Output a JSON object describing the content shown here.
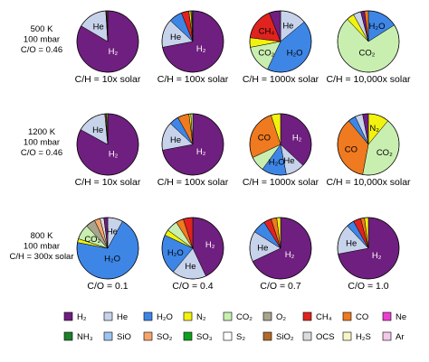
{
  "chart_data": {
    "type": "pie",
    "species": {
      "H2": {
        "label": "H₂",
        "color": "#6f1f7f"
      },
      "He": {
        "label": "He",
        "color": "#c7d3ea"
      },
      "H2O": {
        "label": "H₂O",
        "color": "#3e86e6"
      },
      "N2": {
        "label": "N₂",
        "color": "#f2f20f"
      },
      "CO2": {
        "label": "CO₂",
        "color": "#c9efb0"
      },
      "O2": {
        "label": "O₂",
        "color": "#a9a48d"
      },
      "CH4": {
        "label": "CH₄",
        "color": "#e0231f"
      },
      "CO": {
        "label": "CO",
        "color": "#ef7a1f"
      },
      "Ne": {
        "label": "Ne",
        "color": "#ec3fd2"
      },
      "NH3": {
        "label": "NH₃",
        "color": "#1f7f2a"
      },
      "SiO": {
        "label": "SiO",
        "color": "#9ec4f0"
      },
      "SO2": {
        "label": "SO₂",
        "color": "#f5a56b"
      },
      "SO3": {
        "label": "SO₃",
        "color": "#10a020"
      },
      "S2": {
        "label": "S₂",
        "color": "#ffffff"
      },
      "SiO2": {
        "label": "SiO₂",
        "color": "#b06a2a"
      },
      "OCS": {
        "label": "OCS",
        "color": "#dcdcdc"
      },
      "H2S": {
        "label": "H₂S",
        "color": "#f7f5c6"
      },
      "Ar": {
        "label": "Ar",
        "color": "#f3c8ec"
      }
    },
    "legend": [
      "H2",
      "He",
      "H2O",
      "N2",
      "CO2",
      "O2",
      "CH4",
      "CO",
      "Ne",
      "NH3",
      "SiO",
      "SO2",
      "SO3",
      "S2",
      "SiO2",
      "OCS",
      "H2S",
      "Ar"
    ],
    "rows": [
      {
        "label": [
          "500 K",
          "100 mbar",
          "C/O = 0.46"
        ],
        "pies": [
          {
            "caption": "C/H = 10x solar",
            "slices": [
              {
                "s": "H2",
                "v": 83.5,
                "label": true
              },
              {
                "s": "He",
                "v": 15.5,
                "label": true
              },
              {
                "s": "H2O",
                "v": 0.3
              },
              {
                "s": "CH4",
                "v": 0.4
              },
              {
                "s": "N2",
                "v": 0.3
              }
            ]
          },
          {
            "caption": "C/H = 100x solar",
            "slices": [
              {
                "s": "H2",
                "v": 72,
                "label": true
              },
              {
                "s": "He",
                "v": 15,
                "label": true
              },
              {
                "s": "H2O",
                "v": 7
              },
              {
                "s": "CH4",
                "v": 4
              },
              {
                "s": "N2",
                "v": 1
              },
              {
                "s": "CO2",
                "v": 0.5
              },
              {
                "s": "NH3",
                "v": 0.5
              }
            ]
          },
          {
            "caption": "C/H = 1000x solar",
            "slices": [
              {
                "s": "He",
                "v": 14,
                "label": true
              },
              {
                "s": "H2O",
                "v": 43,
                "label": true
              },
              {
                "s": "CO2",
                "v": 15,
                "label": true
              },
              {
                "s": "N2",
                "v": 5
              },
              {
                "s": "CH4",
                "v": 17,
                "label": true
              },
              {
                "s": "H2",
                "v": 6
              }
            ]
          },
          {
            "caption": "C/H = 10,000x solar",
            "slices": [
              {
                "s": "H2O",
                "v": 16,
                "label": true
              },
              {
                "s": "CO2",
                "v": 72,
                "label": true
              },
              {
                "s": "N2",
                "v": 4
              },
              {
                "s": "He",
                "v": 4
              },
              {
                "s": "H2",
                "v": 2
              },
              {
                "s": "CO",
                "v": 2
              }
            ]
          }
        ]
      },
      {
        "label": [
          "1200 K",
          "100 mbar",
          "C/O = 0.46"
        ],
        "pies": [
          {
            "caption": "C/H = 10x solar",
            "slices": [
              {
                "s": "H2",
                "v": 83,
                "label": true
              },
              {
                "s": "He",
                "v": 15.5,
                "label": true
              },
              {
                "s": "CO",
                "v": 0.5
              },
              {
                "s": "H2O",
                "v": 0.5
              },
              {
                "s": "N2",
                "v": 0.5
              }
            ]
          },
          {
            "caption": "C/H = 100x solar",
            "slices": [
              {
                "s": "H2",
                "v": 72,
                "label": true
              },
              {
                "s": "He",
                "v": 15,
                "label": true
              },
              {
                "s": "H2O",
                "v": 5
              },
              {
                "s": "CO",
                "v": 6
              },
              {
                "s": "N2",
                "v": 1
              },
              {
                "s": "CO2",
                "v": 1
              }
            ]
          },
          {
            "caption": "C/H = 1000x solar",
            "slices": [
              {
                "s": "H2",
                "v": 37,
                "label": true
              },
              {
                "s": "He",
                "v": 10,
                "label": true
              },
              {
                "s": "H2O",
                "v": 13,
                "label": true
              },
              {
                "s": "CO2",
                "v": 8
              },
              {
                "s": "CO",
                "v": 27,
                "label": true
              },
              {
                "s": "N2",
                "v": 5
              }
            ]
          },
          {
            "caption": "C/H = 10,000x solar",
            "slices": [
              {
                "s": "N2",
                "v": 11,
                "label": true
              },
              {
                "s": "CO2",
                "v": 42,
                "label": true
              },
              {
                "s": "CO",
                "v": 36,
                "label": true
              },
              {
                "s": "H2O",
                "v": 4
              },
              {
                "s": "He",
                "v": 4
              },
              {
                "s": "H2",
                "v": 3
              }
            ]
          }
        ]
      },
      {
        "label": [
          "800 K",
          "100 mbar",
          "C/H = 300x solar"
        ],
        "pies": [
          {
            "caption": "C/O = 0.1",
            "slices": [
              {
                "s": "He",
                "v": 8,
                "label": true
              },
              {
                "s": "H2O",
                "v": 70,
                "label": true
              },
              {
                "s": "N2",
                "v": 2
              },
              {
                "s": "CO2",
                "v": 8,
                "label": true
              },
              {
                "s": "O2",
                "v": 5
              },
              {
                "s": "SO2",
                "v": 3
              },
              {
                "s": "OCS",
                "v": 2
              },
              {
                "s": "H2",
                "v": 2
              }
            ]
          },
          {
            "caption": "C/O = 0.4",
            "slices": [
              {
                "s": "H2",
                "v": 43,
                "label": true
              },
              {
                "s": "He",
                "v": 18,
                "label": true
              },
              {
                "s": "H2O",
                "v": 21,
                "label": true
              },
              {
                "s": "N2",
                "v": 3
              },
              {
                "s": "CO2",
                "v": 6
              },
              {
                "s": "CO",
                "v": 4
              },
              {
                "s": "CH4",
                "v": 5
              }
            ]
          },
          {
            "caption": "C/O = 0.7",
            "slices": [
              {
                "s": "H2",
                "v": 68,
                "label": true
              },
              {
                "s": "He",
                "v": 16,
                "label": true
              },
              {
                "s": "H2O",
                "v": 7
              },
              {
                "s": "CH4",
                "v": 4
              },
              {
                "s": "CO",
                "v": 3
              },
              {
                "s": "N2",
                "v": 2
              }
            ]
          },
          {
            "caption": "C/O = 1.0",
            "slices": [
              {
                "s": "H2",
                "v": 72,
                "label": true
              },
              {
                "s": "He",
                "v": 16,
                "label": true
              },
              {
                "s": "H2O",
                "v": 4
              },
              {
                "s": "CH4",
                "v": 4
              },
              {
                "s": "CO",
                "v": 2
              },
              {
                "s": "N2",
                "v": 2
              }
            ]
          }
        ]
      }
    ]
  }
}
